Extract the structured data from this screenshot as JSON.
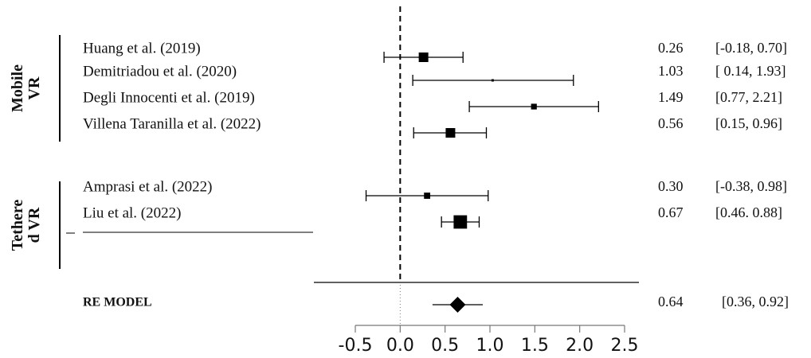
{
  "chart_data": {
    "type": "forest",
    "title": "",
    "xlabel": "",
    "ylabel": "",
    "xlim": [
      -0.5,
      2.5
    ],
    "x_ticks": [
      "-0.5",
      "0.0",
      "0.5",
      "1.0",
      "1.5",
      "2.0",
      "2.5"
    ],
    "groups": [
      {
        "label_lines": [
          "Mobile",
          "VR"
        ]
      },
      {
        "label_lines": [
          "Tethere",
          "d VR"
        ]
      }
    ],
    "studies": [
      {
        "group": 0,
        "name": "Huang et al. (2019)",
        "estimate": 0.26,
        "est_label": "0.26",
        "ci_label": "[-0.18, 0.70]",
        "ci": [
          -0.18,
          0.7
        ],
        "weight": 1.0
      },
      {
        "group": 0,
        "name": "Demitriadou et al. (2020)",
        "estimate": 1.03,
        "est_label": "1.03",
        "ci_label": "[ 0.14, 1.93]",
        "ci": [
          0.14,
          1.93
        ],
        "weight": 0.25
      },
      {
        "group": 0,
        "name": "Degli Innocenti et al. (2019)",
        "estimate": 1.49,
        "est_label": "1.49",
        "ci_label": "[0.77, 2.21]",
        "ci": [
          0.77,
          2.21
        ],
        "weight": 0.6
      },
      {
        "group": 0,
        "name": "Villena Taranilla et al. (2022)",
        "estimate": 0.56,
        "est_label": "0.56",
        "ci_label": "[0.15, 0.96]",
        "ci": [
          0.15,
          0.96
        ],
        "weight": 1.0
      },
      {
        "group": 1,
        "name": "Amprasi et al. (2022)",
        "estimate": 0.3,
        "est_label": "0.30",
        "ci_label": "[-0.38, 0.98]",
        "ci": [
          -0.38,
          0.98
        ],
        "weight": 0.65
      },
      {
        "group": 1,
        "name": "Liu et al. (2022)",
        "estimate": 0.67,
        "est_label": "0.67",
        "ci_label": "[0.46. 0.88]",
        "ci": [
          0.46,
          0.88
        ],
        "weight": 1.4
      }
    ],
    "summary": {
      "name": "RE MODEL",
      "estimate": 0.64,
      "est_label": "0.64",
      "ci_label": "[0.36, 0.92]",
      "ci": [
        0.36,
        0.92
      ]
    },
    "reference_line": 0.0
  }
}
